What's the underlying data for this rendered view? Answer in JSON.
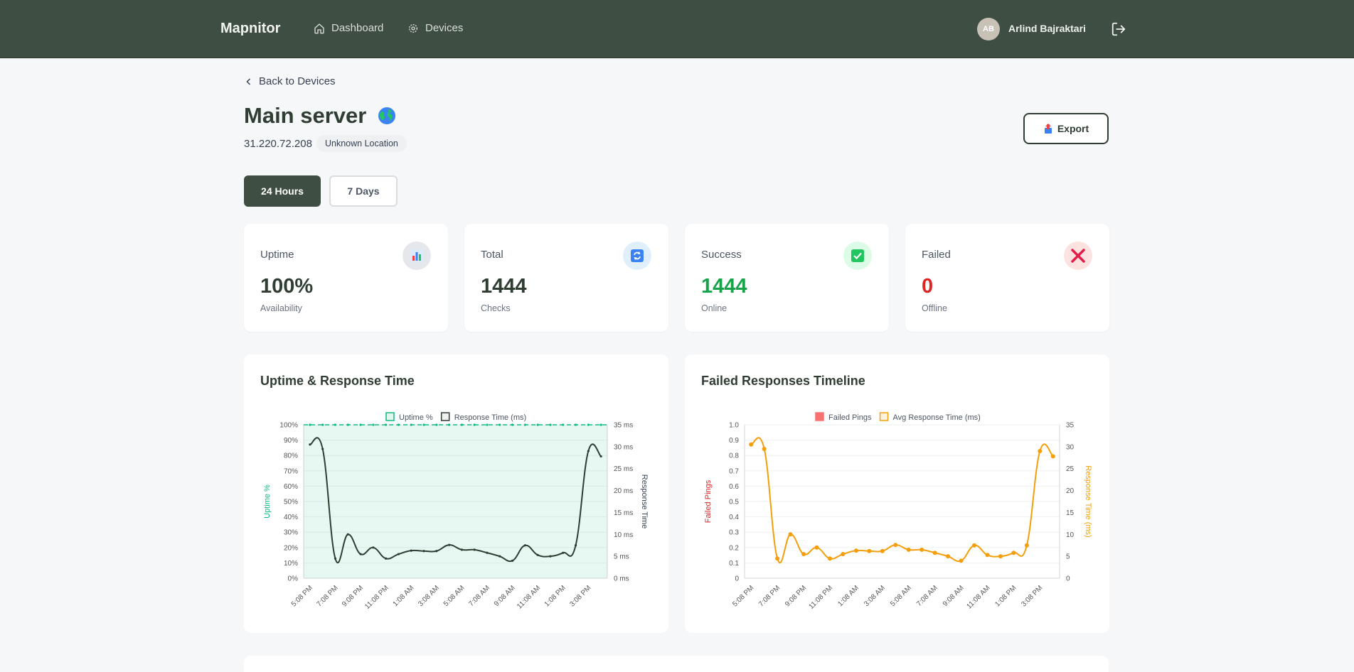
{
  "nav": {
    "brand": "Mapnitor",
    "dashboard_label": "Dashboard",
    "devices_label": "Devices",
    "avatar_initials": "AB",
    "user_name": "Arlind Bajraktari"
  },
  "page": {
    "back_label": "Back to Devices",
    "title": "Main server",
    "ip": "31.220.72.208",
    "location": "Unknown Location",
    "export_label": "Export"
  },
  "range_tabs": [
    "24 Hours",
    "7 Days"
  ],
  "stats": [
    {
      "label": "Uptime",
      "value": "100%",
      "sub": "Availability",
      "color": "#2f3d33",
      "icon": "bar-chart-icon"
    },
    {
      "label": "Total",
      "value": "1444",
      "sub": "Checks",
      "color": "#2f3d33",
      "icon": "refresh-icon"
    },
    {
      "label": "Success",
      "value": "1444",
      "sub": "Online",
      "color": "#16a34a",
      "icon": "check-icon"
    },
    {
      "label": "Failed",
      "value": "0",
      "sub": "Offline",
      "color": "#dc2626",
      "icon": "x-icon"
    }
  ],
  "charts_titles": {
    "uptime_panel": "Uptime & Response Time",
    "failed_panel": "Failed Responses Timeline"
  },
  "chart_data": [
    {
      "type": "line",
      "title": "Uptime & Response Time",
      "legend": [
        "Uptime %",
        "Response Time (ms)"
      ],
      "legend_placement": "top",
      "ylabel_left": "Uptime %",
      "ylabel_right": "Response Time",
      "y_ticks_left": [
        "0%",
        "10%",
        "20%",
        "30%",
        "40%",
        "50%",
        "60%",
        "70%",
        "80%",
        "90%",
        "100%"
      ],
      "y_ticks_right": [
        "0 ms",
        "5 ms",
        "10 ms",
        "15 ms",
        "20 ms",
        "25 ms",
        "30 ms",
        "35 ms"
      ],
      "ylim_left": [
        0,
        100
      ],
      "ylim_right": [
        0,
        35
      ],
      "x_tick_labels": [
        "5:08 PM",
        "7:08 PM",
        "9:08 PM",
        "11:08 PM",
        "1:08 AM",
        "3:08 AM",
        "5:08 AM",
        "7:08 AM",
        "9:08 AM",
        "11:08 AM",
        "1:08 PM",
        "3:08 PM"
      ],
      "colors": {
        "uptime": "#10b981",
        "response": "#2f3d33"
      },
      "series": [
        {
          "name": "Uptime %",
          "axis": "left",
          "values": [
            100,
            100,
            100,
            100,
            100,
            100,
            100,
            100,
            100,
            100,
            100,
            100,
            100,
            100,
            100,
            100,
            100,
            100,
            100,
            100,
            100,
            100,
            100,
            100
          ]
        },
        {
          "name": "Response Time (ms)",
          "axis": "right",
          "values": [
            30.5,
            29.5,
            4.5,
            10,
            5.5,
            7,
            4.5,
            5.5,
            6.3,
            6.2,
            6.2,
            7.6,
            6.5,
            6.5,
            5.8,
            5,
            4,
            7.5,
            5.3,
            5,
            5.8,
            7.5,
            29,
            27.8
          ]
        }
      ]
    },
    {
      "type": "line",
      "title": "Failed Responses Timeline",
      "legend": [
        "Failed Pings",
        "Avg Response Time (ms)"
      ],
      "legend_placement": "top",
      "ylabel_left": "Failed Pings",
      "ylabel_right": "Response Time (ms)",
      "y_ticks_left": [
        "0",
        "0.1",
        "0.2",
        "0.3",
        "0.4",
        "0.5",
        "0.6",
        "0.7",
        "0.8",
        "0.9",
        "1.0"
      ],
      "y_ticks_right": [
        "0",
        "5",
        "10",
        "15",
        "20",
        "25",
        "30",
        "35"
      ],
      "ylim_left": [
        0,
        1
      ],
      "ylim_right": [
        0,
        35
      ],
      "x_tick_labels": [
        "5:08 PM",
        "7:08 PM",
        "9:08 PM",
        "11:08 PM",
        "1:08 AM",
        "3:08 AM",
        "5:08 AM",
        "7:08 AM",
        "9:08 AM",
        "11:08 AM",
        "1:08 PM",
        "3:08 PM"
      ],
      "colors": {
        "failed": "#f87171",
        "response": "#f59e0b"
      },
      "series": [
        {
          "name": "Failed Pings",
          "axis": "left",
          "values": [
            0,
            0,
            0,
            0,
            0,
            0,
            0,
            0,
            0,
            0,
            0,
            0,
            0,
            0,
            0,
            0,
            0,
            0,
            0,
            0,
            0,
            0,
            0,
            0
          ]
        },
        {
          "name": "Avg Response Time (ms)",
          "axis": "right",
          "values": [
            30.5,
            29.5,
            4.5,
            10,
            5.5,
            7,
            4.5,
            5.5,
            6.3,
            6.2,
            6.2,
            7.6,
            6.5,
            6.5,
            5.8,
            5,
            4,
            7.5,
            5.3,
            5,
            5.8,
            7.5,
            29,
            27.8
          ]
        }
      ]
    }
  ]
}
